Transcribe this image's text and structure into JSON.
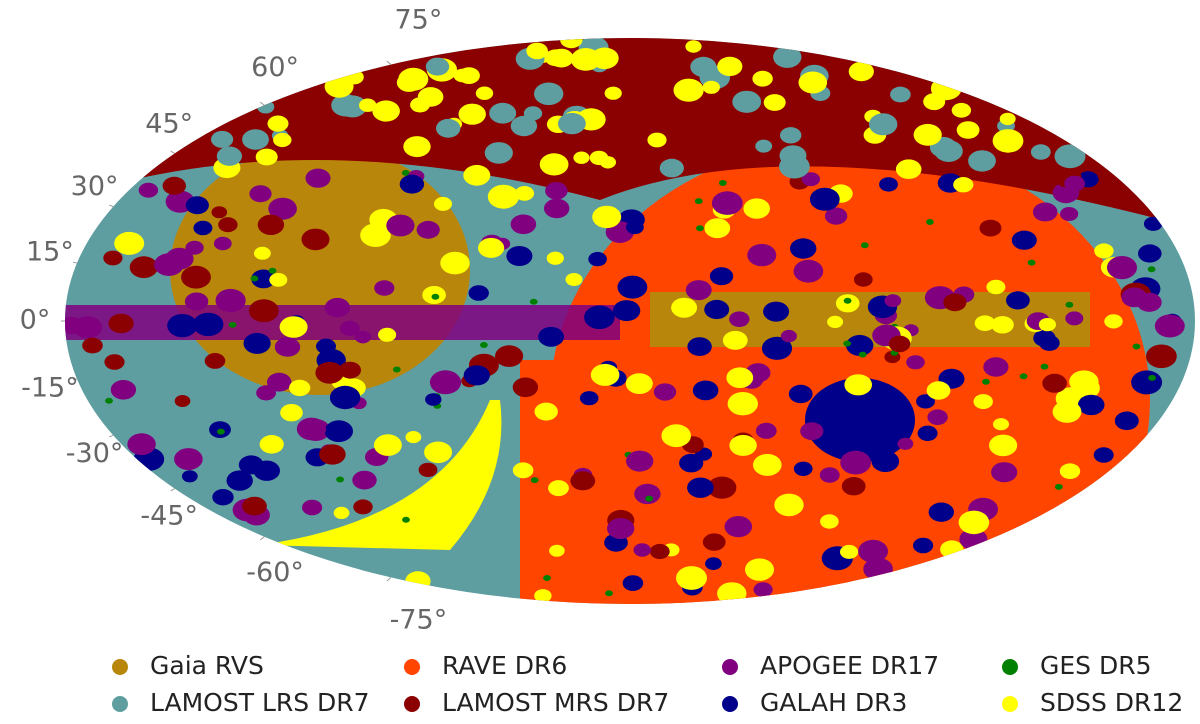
{
  "chart_data": {
    "type": "sky-map",
    "lat_ticks": [
      {
        "value": 75,
        "label": "75°"
      },
      {
        "value": 60,
        "label": "60°"
      },
      {
        "value": 45,
        "label": "45°"
      },
      {
        "value": 30,
        "label": "30°"
      },
      {
        "value": 15,
        "label": "15°"
      },
      {
        "value": 0,
        "label": "0°"
      },
      {
        "value": -15,
        "label": "-15°"
      },
      {
        "value": -30,
        "label": "-30°"
      },
      {
        "value": -45,
        "label": "-45°"
      },
      {
        "value": -60,
        "label": "-60°"
      },
      {
        "value": -75,
        "label": "-75°"
      }
    ],
    "series": [
      {
        "name": "Gaia RVS",
        "color": "#b8860b"
      },
      {
        "name": "RAVE DR6",
        "color": "#ff4500"
      },
      {
        "name": "APOGEE DR17",
        "color": "#800080"
      },
      {
        "name": "GES DR5",
        "color": "#008000"
      },
      {
        "name": "LAMOST LRS DR7",
        "color": "#5f9ea0"
      },
      {
        "name": "LAMOST MRS DR7",
        "color": "#8b0000"
      },
      {
        "name": "GALAH DR3",
        "color": "#00008b"
      },
      {
        "name": "SDSS DR12",
        "color": "#ffff00"
      }
    ],
    "legend_position": "bottom"
  }
}
